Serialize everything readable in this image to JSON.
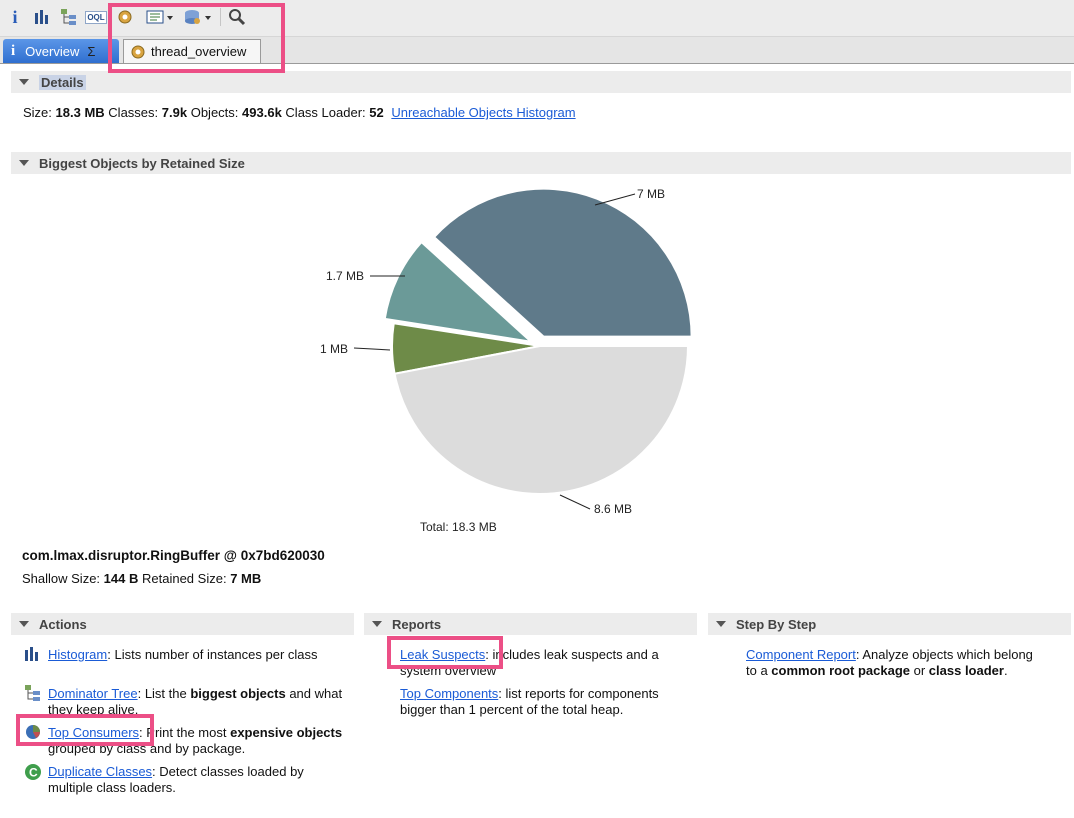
{
  "toolbar": {
    "buttons": [
      {
        "name": "info-icon",
        "glyph": "i"
      },
      {
        "name": "histogram-icon"
      },
      {
        "name": "dominator-tree-icon"
      },
      {
        "name": "oql-icon",
        "glyph": "OQL"
      },
      {
        "name": "thread-overview-gear-icon"
      },
      {
        "name": "run-report-dropdown-icon"
      },
      {
        "name": "query-browser-dropdown-icon"
      },
      {
        "name": "search-icon"
      }
    ]
  },
  "tabs": [
    {
      "label": "Overview",
      "icon": "info-icon",
      "closer": "Σ"
    },
    {
      "label": "thread_overview",
      "icon": "gear-icon"
    }
  ],
  "details": {
    "section_title": "Details",
    "size_label": "Size:",
    "size_value": "18.3 MB",
    "classes_label": "Classes:",
    "classes_value": "7.9k",
    "objects_label": "Objects:",
    "objects_value": "493.6k",
    "classloader_label": "Class Loader:",
    "classloader_value": "52",
    "histogram_link": "Unreachable Objects Histogram"
  },
  "biggest": {
    "section_title": "Biggest Objects by Retained Size",
    "total_label": "Total: 18.3 MB",
    "selected_object": "com.lmax.disruptor.RingBuffer @ 0x7bd620030",
    "shallow_label": "Shallow Size:",
    "shallow_value": "144 B",
    "retained_label": "Retained Size:",
    "retained_value": "7 MB"
  },
  "chart_data": {
    "type": "pie",
    "title": "",
    "slices": [
      {
        "label": "7 MB",
        "value": 7.0,
        "color": "#5f7a8a",
        "exploded": true
      },
      {
        "label": "1.7 MB",
        "value": 1.7,
        "color": "#6b9a98",
        "exploded": true
      },
      {
        "label": "1 MB",
        "value": 1.0,
        "color": "#6e8b48",
        "exploded": false
      },
      {
        "label": "8.6 MB",
        "value": 8.6,
        "color": "#dcdcdc",
        "exploded": false
      }
    ],
    "total_label": "Total: 18.3 MB"
  },
  "actions": {
    "section_title": "Actions",
    "items": [
      {
        "link": "Histogram",
        "desc_pre": ": Lists number of instances per class",
        "icon": "histogram-icon"
      },
      {
        "link": "Dominator Tree",
        "desc_pre": ": List the ",
        "desc_bold": "biggest objects",
        "desc_post": " and what they keep alive.",
        "icon": "dominator-tree-icon"
      },
      {
        "link": "Top Consumers",
        "desc_pre": ": Print the most ",
        "desc_bold": "expensive objects",
        "desc_post": " grouped by class and by package.",
        "icon": "top-consumers-icon"
      },
      {
        "link": "Duplicate Classes",
        "desc_pre": ": Detect classes loaded by multiple class loaders.",
        "icon": "duplicate-classes-icon"
      }
    ]
  },
  "reports": {
    "section_title": "Reports",
    "items": [
      {
        "link": "Leak Suspects",
        "desc": ": includes leak suspects and a system overview"
      },
      {
        "link": "Top Components",
        "desc": ": list reports for components bigger than 1 percent of the total heap."
      }
    ]
  },
  "stepbystep": {
    "section_title": "Step By Step",
    "items": [
      {
        "link": "Component Report",
        "desc_pre": ": Analyze objects which belong to a ",
        "desc_bold1": "common root package",
        "desc_mid": " or ",
        "desc_bold2": "class loader",
        "desc_post": "."
      }
    ]
  },
  "colors": {
    "highlight": "#ec4f86",
    "link": "#1a5bd6",
    "tab_active": "#2f6fd0"
  }
}
